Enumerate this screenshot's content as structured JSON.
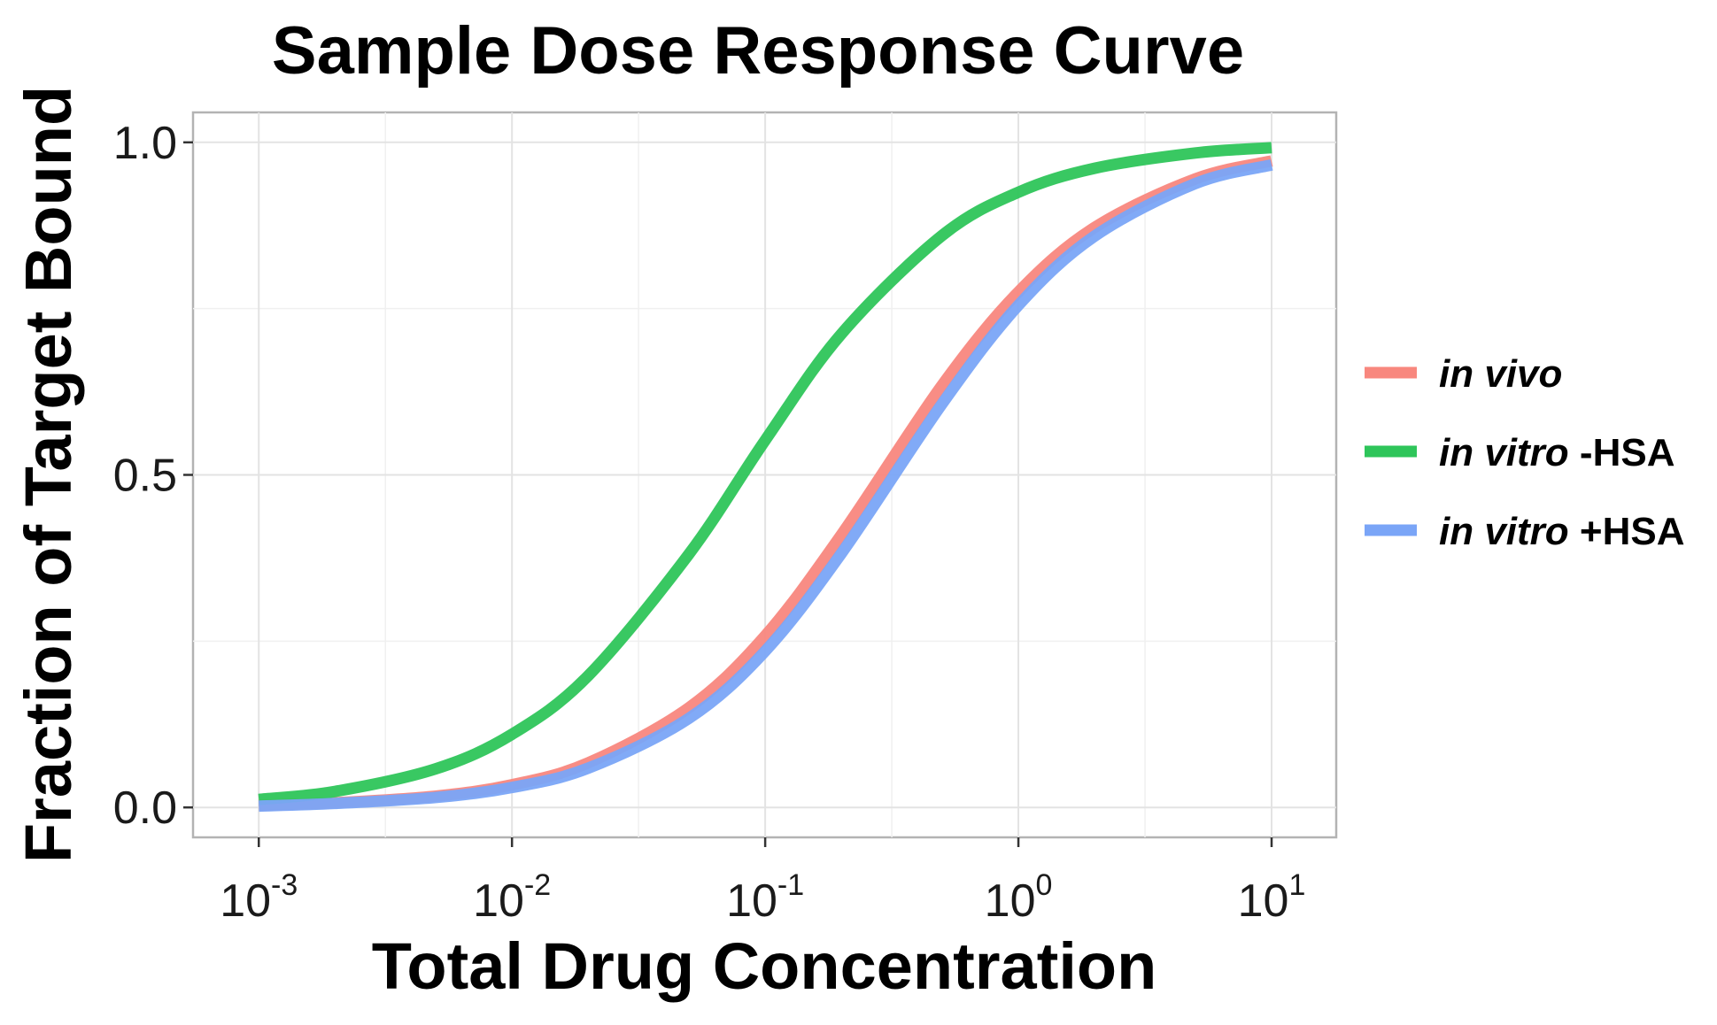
{
  "chart_data": {
    "type": "line",
    "title": "Sample Dose Response Curve",
    "xlabel": "Total Drug Concentration",
    "ylabel": "Fraction of Target Bound",
    "xscale": "log10",
    "xlim": [
      0.00055,
      18
    ],
    "ylim": [
      -0.045,
      1.045
    ],
    "xticks": [
      {
        "value": 0.001,
        "base": "10",
        "exp": "-3"
      },
      {
        "value": 0.01,
        "base": "10",
        "exp": "-2"
      },
      {
        "value": 0.1,
        "base": "10",
        "exp": "-1"
      },
      {
        "value": 1,
        "base": "10",
        "exp": "0"
      },
      {
        "value": 10,
        "base": "10",
        "exp": "1"
      }
    ],
    "yticks": [
      {
        "value": 0.0,
        "label": "0.0"
      },
      {
        "value": 0.5,
        "label": "0.5"
      },
      {
        "value": 1.0,
        "label": "1.0"
      }
    ],
    "grid": true,
    "legend_position": "right",
    "x": [
      0.001,
      0.002,
      0.005,
      0.01,
      0.02,
      0.05,
      0.1,
      0.2,
      0.5,
      1,
      2,
      5,
      10
    ],
    "series": [
      {
        "name": "in vivo",
        "name_italic": "in vivo",
        "name_suffix": "",
        "color": "#F8877E",
        "values": [
          0.003,
          0.007,
          0.017,
          0.034,
          0.067,
          0.15,
          0.258,
          0.41,
          0.635,
          0.775,
          0.872,
          0.945,
          0.972
        ]
      },
      {
        "name": "in vitro -HSA",
        "name_italic": "in vitro",
        "name_suffix": " -HSA",
        "color": "#2EC55A",
        "values": [
          0.012,
          0.024,
          0.058,
          0.11,
          0.198,
          0.381,
          0.552,
          0.712,
          0.86,
          0.925,
          0.961,
          0.984,
          0.992
        ]
      },
      {
        "name": "in vitro +HSA",
        "name_italic": "in vitro",
        "name_suffix": " +HSA",
        "color": "#7AA5F7",
        "values": [
          0.002,
          0.006,
          0.015,
          0.03,
          0.059,
          0.134,
          0.235,
          0.382,
          0.607,
          0.755,
          0.859,
          0.938,
          0.966
        ]
      }
    ]
  }
}
